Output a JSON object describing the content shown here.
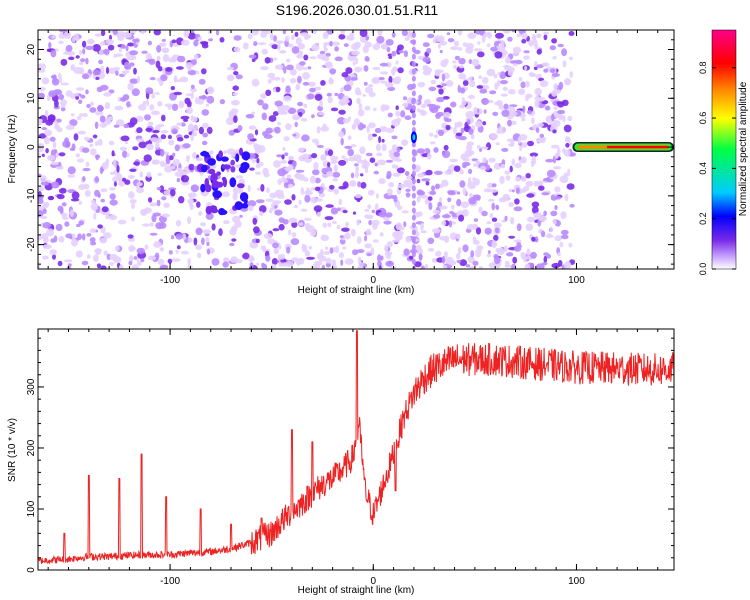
{
  "title": "S196.2026.030.01.51.R11",
  "chart_data": [
    {
      "type": "heatmap",
      "title": "S196.2026.030.01.51.R11",
      "xlabel": "Height of straight line (km)",
      "ylabel": "Frequency (Hz)",
      "xlim": [
        -165,
        148
      ],
      "ylim": [
        -25,
        24
      ],
      "xticks": [
        -100,
        0,
        100
      ],
      "yticks": [
        -20,
        -10,
        0,
        10,
        20
      ],
      "colorbar": {
        "label": "Normalized spectral amplitude",
        "range": [
          0,
          0.95
        ],
        "ticks": [
          0.0,
          0.2,
          0.4,
          0.6,
          0.8
        ]
      },
      "features": {
        "noise_region_x": [
          -165,
          98
        ],
        "carrier_x": [
          98,
          148
        ],
        "carrier_freq_hz": 0,
        "carrier_amplitude": 0.8,
        "blob_cluster": {
          "x": [
            -86,
            -62
          ],
          "freq": [
            -14,
            0
          ],
          "amplitude": 0.25
        },
        "vertical_stripe_x": 20,
        "vertical_stripe_peak": {
          "freq": 2,
          "amplitude": 0.3
        }
      }
    },
    {
      "type": "line",
      "xlabel": "Height of straight line (km)",
      "ylabel": "SNR (10 * v/v)",
      "xlim": [
        -165,
        148
      ],
      "ylim": [
        0,
        395
      ],
      "xticks": [
        -100,
        0,
        100
      ],
      "yticks": [
        0,
        100,
        200,
        300
      ],
      "series": [
        {
          "name": "SNR",
          "color": "#ee2222",
          "x": [
            -165,
            -150,
            -140,
            -130,
            -120,
            -110,
            -100,
            -90,
            -80,
            -70,
            -60,
            -50,
            -45,
            -40,
            -35,
            -30,
            -25,
            -20,
            -15,
            -10,
            -7,
            -4,
            0,
            5,
            10,
            15,
            20,
            25,
            30,
            40,
            60,
            80,
            100,
            120,
            140,
            148
          ],
          "values": [
            15,
            18,
            22,
            22,
            24,
            25,
            25,
            28,
            30,
            35,
            45,
            60,
            80,
            95,
            110,
            125,
            140,
            150,
            165,
            185,
            240,
            130,
            90,
            140,
            190,
            250,
            290,
            315,
            330,
            345,
            345,
            338,
            332,
            330,
            328,
            330
          ]
        }
      ],
      "spikes": [
        {
          "x": -152,
          "value": 60
        },
        {
          "x": -140,
          "value": 155
        },
        {
          "x": -125,
          "value": 150
        },
        {
          "x": -114,
          "value": 190
        },
        {
          "x": -102,
          "value": 120
        },
        {
          "x": -85,
          "value": 100
        },
        {
          "x": -70,
          "value": 75
        },
        {
          "x": -55,
          "value": 85
        },
        {
          "x": -40,
          "value": 230
        },
        {
          "x": -30,
          "value": 210
        },
        {
          "x": -8,
          "value": 392
        },
        {
          "x": 11,
          "value": 130
        }
      ]
    }
  ],
  "colors": {
    "heat_low": "#d8b8ff",
    "heat_mid": "#7a2be8",
    "line": "#ee2222",
    "colorbar": [
      "#ffffff",
      "#7a2be8",
      "#0000ff",
      "#00ccff",
      "#00ff44",
      "#ffff00",
      "#ff8800",
      "#ff0000",
      "#ff0088"
    ]
  }
}
